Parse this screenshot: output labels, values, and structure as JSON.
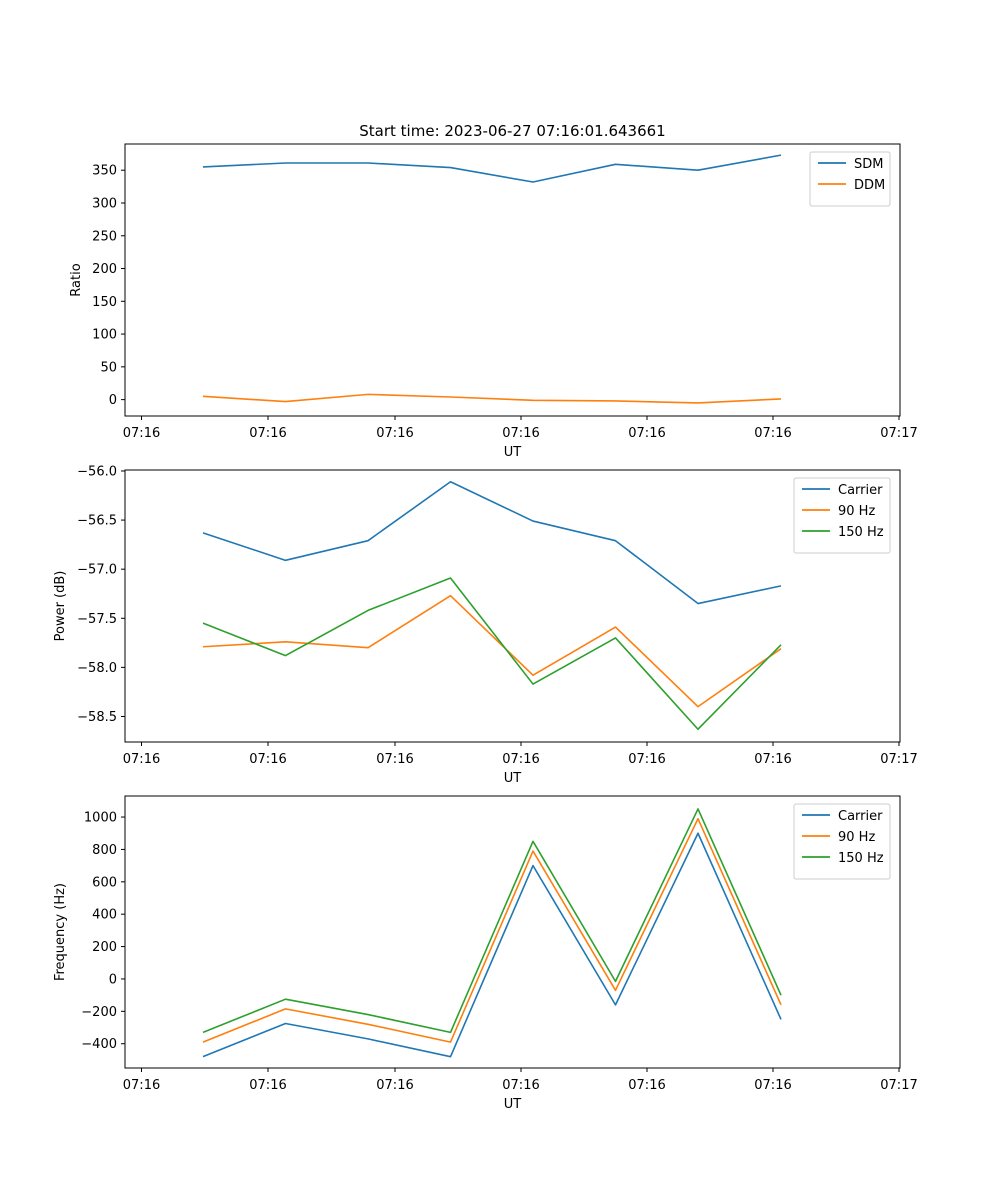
{
  "figure": {
    "title": "Start time: 2023-06-27 07:16:01.643661"
  },
  "chart_data": [
    {
      "type": "line",
      "title": "Start time: 2023-06-27 07:16:01.643661",
      "xlabel": "UT",
      "ylabel": "Ratio",
      "x_tick_labels": [
        "07:16",
        "07:16",
        "07:16",
        "07:16",
        "07:16",
        "07:16",
        "07:17"
      ],
      "x": [
        1,
        2,
        3,
        4,
        5,
        6,
        7,
        8
      ],
      "xlim": [
        0.25,
        8.95
      ],
      "ylim": [
        -25,
        390
      ],
      "y_ticks": [
        0,
        50,
        100,
        150,
        200,
        250,
        300,
        350
      ],
      "legend_position": "top-right",
      "series": [
        {
          "name": "SDM",
          "color": "#1f77b4",
          "values": [
            355,
            361,
            361,
            354,
            332,
            359,
            350,
            373
          ]
        },
        {
          "name": "DDM",
          "color": "#ff7f0e",
          "values": [
            5,
            -3,
            8,
            4,
            -1,
            -2,
            -5,
            1
          ]
        }
      ]
    },
    {
      "type": "line",
      "title": "",
      "xlabel": "UT",
      "ylabel": "Power (dB)",
      "x_tick_labels": [
        "07:16",
        "07:16",
        "07:16",
        "07:16",
        "07:16",
        "07:16",
        "07:17"
      ],
      "x": [
        1,
        2,
        3,
        4,
        5,
        6,
        7,
        8
      ],
      "xlim": [
        0.25,
        8.95
      ],
      "ylim": [
        -58.76,
        -55.99
      ],
      "y_ticks": [
        -58.5,
        -58.0,
        -57.5,
        -57.0,
        -56.5,
        -56.0
      ],
      "y_tick_labels": [
        "−58.5",
        "−58.0",
        "−57.5",
        "−57.0",
        "−56.5",
        "−56.0"
      ],
      "legend_position": "top-right",
      "series": [
        {
          "name": "Carrier",
          "color": "#1f77b4",
          "values": [
            -56.63,
            -56.91,
            -56.71,
            -56.11,
            -56.51,
            -56.71,
            -57.35,
            -57.17
          ]
        },
        {
          "name": "90 Hz",
          "color": "#ff7f0e",
          "values": [
            -57.79,
            -57.74,
            -57.8,
            -57.27,
            -58.08,
            -57.59,
            -58.4,
            -57.81
          ]
        },
        {
          "name": "150 Hz",
          "color": "#2ca02c",
          "values": [
            -57.55,
            -57.88,
            -57.42,
            -57.09,
            -58.17,
            -57.7,
            -58.63,
            -57.77
          ]
        }
      ]
    },
    {
      "type": "line",
      "title": "",
      "xlabel": "UT",
      "ylabel": "Frequency (Hz)",
      "x_tick_labels": [
        "07:16",
        "07:16",
        "07:16",
        "07:16",
        "07:16",
        "07:16",
        "07:17"
      ],
      "x": [
        1,
        2,
        3,
        4,
        5,
        6,
        7,
        8
      ],
      "xlim": [
        0.25,
        8.95
      ],
      "ylim": [
        -550,
        1130
      ],
      "y_ticks": [
        -400,
        -200,
        0,
        200,
        400,
        600,
        800,
        1000
      ],
      "y_tick_labels": [
        "−400",
        "−200",
        "0",
        "200",
        "400",
        "600",
        "800",
        "1000"
      ],
      "legend_position": "top-right",
      "series": [
        {
          "name": "Carrier",
          "color": "#1f77b4",
          "values": [
            -480,
            -275,
            -370,
            -480,
            700,
            -160,
            900,
            -250
          ]
        },
        {
          "name": "90 Hz",
          "color": "#ff7f0e",
          "values": [
            -390,
            -185,
            -280,
            -390,
            790,
            -70,
            990,
            -160
          ]
        },
        {
          "name": "150 Hz",
          "color": "#2ca02c",
          "values": [
            -330,
            -125,
            -220,
            -330,
            850,
            -15,
            1050,
            -100
          ]
        }
      ]
    }
  ]
}
